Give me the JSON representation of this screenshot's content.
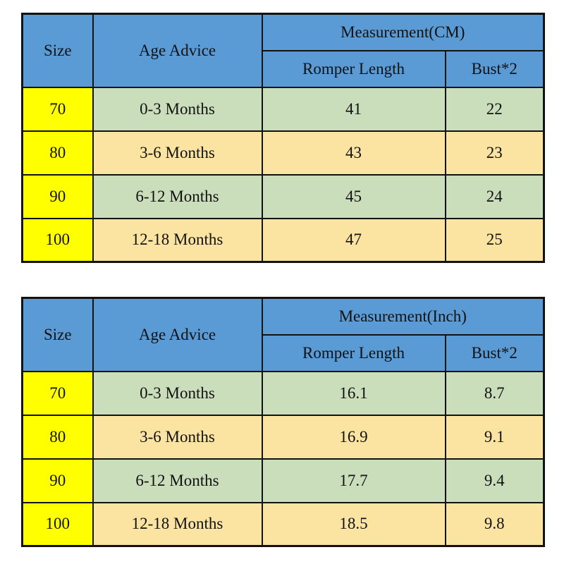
{
  "colors": {
    "header_blue": "#5B9BD5",
    "size_yellow": "#FFFF00",
    "row_green": "#CBDEBB",
    "row_tan": "#FBE3A2",
    "border": "#121212",
    "text": "#121212",
    "background": "#FFFFFF"
  },
  "tables": [
    {
      "headers": {
        "size": "Size",
        "age_advice": "Age Advice",
        "measurement": "Measurement(CM)",
        "romper_length": "Romper Length",
        "bust": "Bust*2"
      },
      "rows": [
        {
          "size": "70",
          "age": "0-3 Months",
          "length": "41",
          "bust": "22"
        },
        {
          "size": "80",
          "age": "3-6 Months",
          "length": "43",
          "bust": "23"
        },
        {
          "size": "90",
          "age": "6-12 Months",
          "length": "45",
          "bust": "24"
        },
        {
          "size": "100",
          "age": "12-18 Months",
          "length": "47",
          "bust": "25"
        }
      ]
    },
    {
      "headers": {
        "size": "Size",
        "age_advice": "Age Advice",
        "measurement": "Measurement(Inch)",
        "romper_length": "Romper Length",
        "bust": "Bust*2"
      },
      "rows": [
        {
          "size": "70",
          "age": "0-3 Months",
          "length": "16.1",
          "bust": "8.7"
        },
        {
          "size": "80",
          "age": "3-6 Months",
          "length": "16.9",
          "bust": "9.1"
        },
        {
          "size": "90",
          "age": "6-12 Months",
          "length": "17.7",
          "bust": "9.4"
        },
        {
          "size": "100",
          "age": "12-18 Months",
          "length": "18.5",
          "bust": "9.8"
        }
      ]
    }
  ],
  "chart_data": [
    {
      "type": "table",
      "title": "Measurement(CM)",
      "columns": [
        "Size",
        "Age Advice",
        "Romper Length",
        "Bust*2"
      ],
      "rows": [
        [
          "70",
          "0-3 Months",
          41,
          22
        ],
        [
          "80",
          "3-6 Months",
          43,
          23
        ],
        [
          "90",
          "6-12 Months",
          45,
          24
        ],
        [
          "100",
          "12-18 Months",
          47,
          25
        ]
      ]
    },
    {
      "type": "table",
      "title": "Measurement(Inch)",
      "columns": [
        "Size",
        "Age Advice",
        "Romper Length",
        "Bust*2"
      ],
      "rows": [
        [
          "70",
          "0-3 Months",
          16.1,
          8.7
        ],
        [
          "80",
          "3-6 Months",
          16.9,
          9.1
        ],
        [
          "90",
          "6-12 Months",
          17.7,
          9.4
        ],
        [
          "100",
          "12-18 Months",
          18.5,
          9.8
        ]
      ]
    }
  ]
}
